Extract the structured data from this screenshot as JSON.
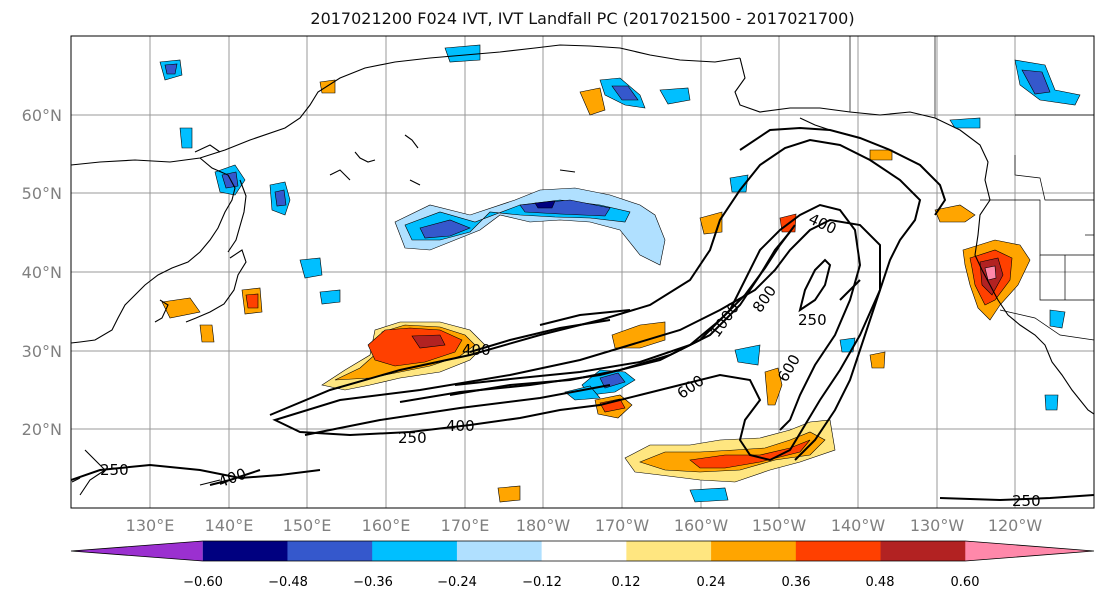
{
  "title": "2017021200 F024 IVT, IVT Landfall PC (2017021500 - 2017021700)",
  "lat_labels": [
    "60°N",
    "50°N",
    "40°N",
    "30°N",
    "20°N"
  ],
  "lon_labels": [
    "130°E",
    "140°E",
    "150°E",
    "160°E",
    "170°E",
    "180°W",
    "170°W",
    "160°W",
    "150°W",
    "140°W",
    "130°W",
    "120°W"
  ],
  "contour_labels": [
    "400",
    "400",
    "1000",
    "800",
    "600",
    "250",
    "600",
    "400",
    "250",
    "400",
    "250",
    "250"
  ],
  "colorbar": {
    "ticks": [
      "−0.60",
      "−0.48",
      "−0.36",
      "−0.24",
      "−0.12",
      "0.12",
      "0.24",
      "0.36",
      "0.48",
      "0.60"
    ],
    "colors": [
      "#9b30d0",
      "#000080",
      "#3558cc",
      "#00bfff",
      "#b0e0ff",
      "#ffffff",
      "#ffe680",
      "#ffa500",
      "#ff4000",
      "#b22222",
      "#ff88aa"
    ]
  }
}
